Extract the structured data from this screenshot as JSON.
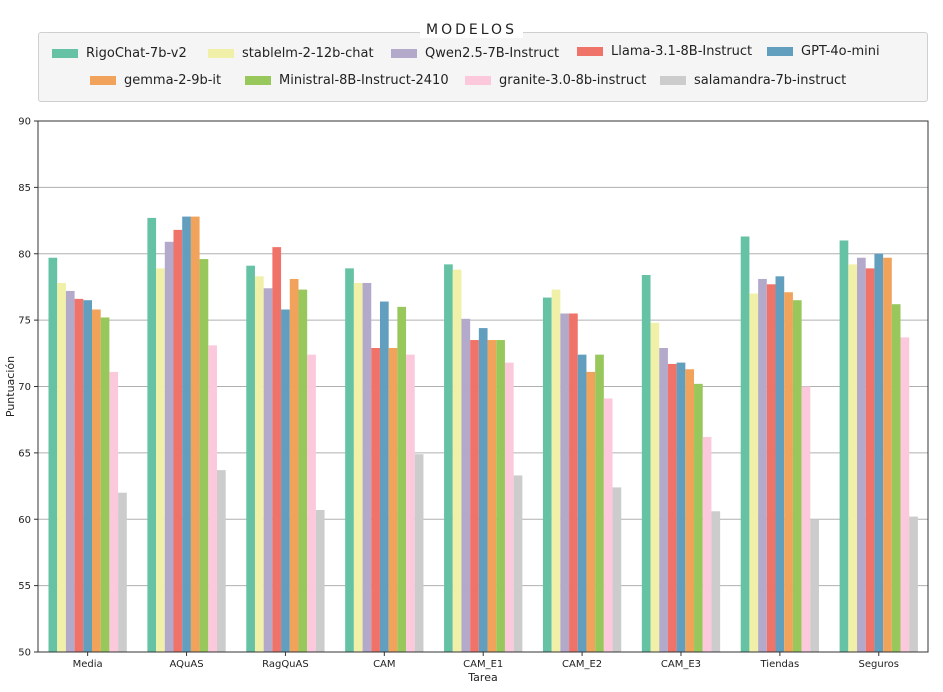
{
  "chart_data": {
    "type": "bar",
    "legend_title": "MODELOS",
    "legend_placement": "top",
    "xlabel": "Tarea",
    "ylabel": "Puntuación",
    "ylim": [
      50,
      90
    ],
    "yticks": [
      50,
      55,
      60,
      65,
      70,
      75,
      80,
      85,
      90
    ],
    "grid": "horizontal",
    "categories": [
      "Media",
      "AQuAS",
      "RagQuAS",
      "CAM",
      "CAM_E1",
      "CAM_E2",
      "CAM_E3",
      "Tiendas",
      "Seguros"
    ],
    "series": [
      {
        "name": "RigoChat-7b-v2",
        "color": "#66c2a5",
        "values": [
          79.7,
          82.7,
          79.1,
          78.9,
          79.2,
          76.7,
          78.4,
          81.3,
          81.0
        ]
      },
      {
        "name": "stablelm-2-12b-chat",
        "color": "#f0f0a8",
        "values": [
          77.8,
          78.9,
          78.3,
          77.8,
          78.8,
          77.3,
          74.8,
          77.0,
          79.2
        ]
      },
      {
        "name": "Qwen2.5-7B-Instruct",
        "color": "#b3aacb",
        "values": [
          77.2,
          80.9,
          77.4,
          77.8,
          75.1,
          75.5,
          72.9,
          78.1,
          79.7
        ]
      },
      {
        "name": "Llama-3.1-8B-Instruct",
        "color": "#f0736a",
        "values": [
          76.6,
          81.8,
          80.5,
          72.9,
          73.5,
          75.5,
          71.7,
          77.7,
          78.9
        ]
      },
      {
        "name": "GPT-4o-mini",
        "color": "#629ebd",
        "values": [
          76.5,
          82.8,
          75.8,
          76.4,
          74.4,
          72.4,
          71.8,
          78.3,
          80.0
        ]
      },
      {
        "name": "gemma-2-9b-it",
        "color": "#f2a35b",
        "values": [
          75.8,
          82.8,
          78.1,
          72.9,
          73.5,
          71.1,
          71.3,
          77.1,
          79.7
        ]
      },
      {
        "name": "Ministral-8B-Instruct-2410",
        "color": "#98c85c",
        "values": [
          75.2,
          79.6,
          77.3,
          76.0,
          73.5,
          72.4,
          70.2,
          76.5,
          76.2
        ]
      },
      {
        "name": "granite-3.0-8b-instruct",
        "color": "#fcc9dc",
        "values": [
          71.1,
          73.1,
          72.4,
          72.4,
          71.8,
          69.1,
          66.2,
          70.0,
          73.7
        ]
      },
      {
        "name": "salamandra-7b-instruct",
        "color": "#cccccc",
        "values": [
          62.0,
          63.7,
          60.7,
          64.9,
          63.3,
          62.4,
          60.6,
          60.0,
          60.2
        ]
      }
    ]
  }
}
